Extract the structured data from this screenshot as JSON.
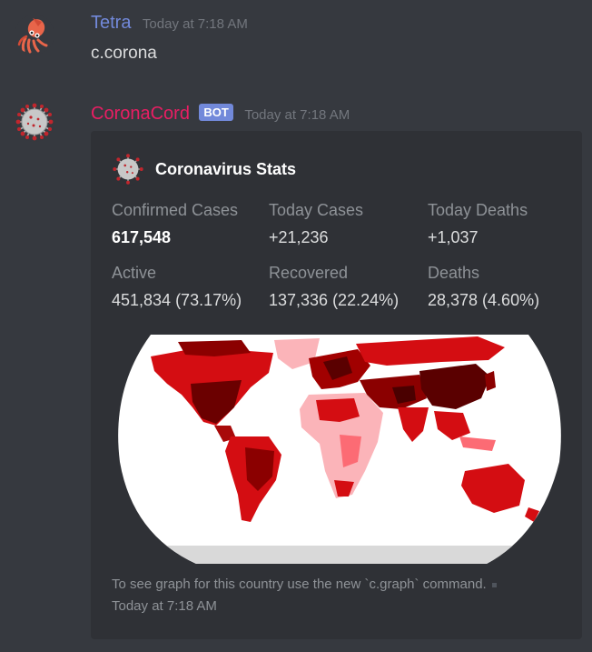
{
  "messages": [
    {
      "username": "Tetra",
      "username_color": "#7289da",
      "timestamp": "Today at 7:18 AM",
      "avatar": "squid-icon",
      "content": "c.corona"
    },
    {
      "username": "CoronaCord",
      "username_color": "#e91e63",
      "bot_tag": "BOT",
      "timestamp": "Today at 7:18 AM",
      "avatar": "virus-icon",
      "embed": {
        "author": "Coronavirus Stats",
        "author_icon": "virus-icon",
        "fields": [
          {
            "name": "Confirmed Cases",
            "value": "617,548",
            "bold": true
          },
          {
            "name": "Today Cases",
            "value": "+21,236"
          },
          {
            "name": "Today Deaths",
            "value": "+1,037"
          },
          {
            "name": "Active",
            "value": "451,834 (73.17%)"
          },
          {
            "name": "Recovered",
            "value": "137,336 (22.24%)"
          },
          {
            "name": "Deaths",
            "value": "28,378 (4.60%)"
          }
        ],
        "image": "world-map-image",
        "footer_text": "To see graph for this country use the new `c.graph` command.",
        "footer_timestamp": "Today at 7:18 AM"
      }
    }
  ],
  "colors": {
    "background": "#36393f",
    "embed_background": "#2f3136",
    "bot_tag": "#7289da"
  }
}
